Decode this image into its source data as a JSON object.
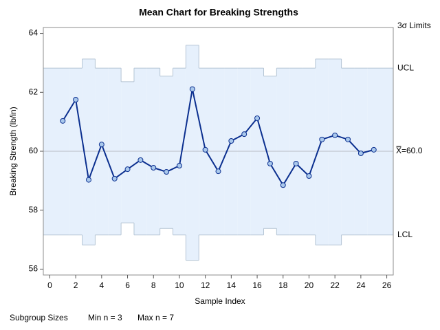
{
  "chart_data": {
    "type": "control",
    "title": "Mean Chart for Breaking Strengths",
    "xlabel": "Sample Index",
    "ylabel": "Breaking Strength (lb/in)",
    "limits_label": "3σ Limits",
    "ucl_label": "UCL",
    "lcl_label": "LCL",
    "center_label": "X̿=60.0",
    "footer": [
      "Subgroup Sizes",
      "Min n = 3",
      "Max n = 7"
    ],
    "x": [
      1,
      2,
      3,
      4,
      5,
      6,
      7,
      8,
      9,
      10,
      11,
      12,
      13,
      14,
      15,
      16,
      17,
      18,
      19,
      20,
      21,
      22,
      23,
      24,
      25
    ],
    "values": [
      61.03,
      61.75,
      59.03,
      60.23,
      59.07,
      59.39,
      59.7,
      59.44,
      59.3,
      59.51,
      62.11,
      60.05,
      59.32,
      60.35,
      60.58,
      61.12,
      59.58,
      58.85,
      59.58,
      59.16,
      60.4,
      60.54,
      60.4,
      59.93,
      60.05
    ],
    "ucl": [
      62.82,
      62.82,
      63.13,
      62.82,
      62.82,
      62.36,
      62.82,
      62.82,
      62.55,
      62.82,
      63.6,
      62.82,
      62.82,
      62.82,
      62.82,
      62.82,
      62.55,
      62.82,
      62.82,
      62.82,
      63.13,
      63.13,
      62.82,
      62.82,
      62.82
    ],
    "lcl": [
      57.16,
      57.16,
      56.82,
      57.16,
      57.16,
      57.57,
      57.16,
      57.16,
      57.38,
      57.16,
      56.3,
      57.16,
      57.16,
      57.16,
      57.16,
      57.16,
      57.38,
      57.16,
      57.16,
      57.16,
      56.82,
      56.82,
      57.16,
      57.16,
      57.16
    ],
    "center": 60,
    "color": "#0b2f8f",
    "marker_color": "#a9c8ec",
    "band_color": "#e6f0fc",
    "limit_color": "#b4c4d4",
    "xlim": [
      -0.5,
      26.5
    ],
    "ylim": [
      55.8,
      64.2
    ],
    "xticks": [
      0,
      2,
      4,
      6,
      8,
      10,
      12,
      14,
      16,
      18,
      20,
      22,
      24,
      26
    ],
    "yticks": [
      56,
      58,
      60,
      62,
      64
    ]
  }
}
